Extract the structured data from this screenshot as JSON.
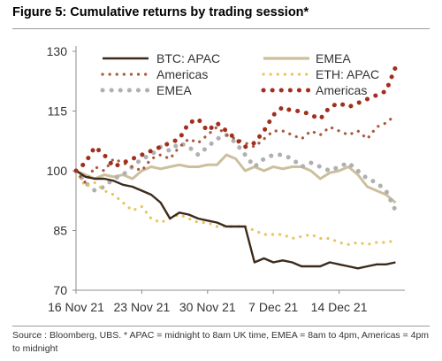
{
  "figure": {
    "title": "Figure 5: Cumulative returns by trading session*",
    "note": "Source : Bloomberg, UBS. * APAC = midnight to 8am UK time, EMEA = 8am to 4pm, Americas = 4pm to midnight"
  },
  "chart_data": {
    "type": "line",
    "xlabel": "",
    "ylabel": "",
    "ylim": [
      70,
      130
    ],
    "yticks": [
      "70",
      "85",
      "100",
      "115",
      "130"
    ],
    "xlim": [
      "2021-11-16",
      "2021-12-21"
    ],
    "xticks": [
      "16 Nov 21",
      "23 Nov 21",
      "30 Nov 21",
      "7 Dec 21",
      "14 Dec 21"
    ],
    "grid": false,
    "legend_placement": "top",
    "x": [
      "2021-11-16",
      "2021-11-17",
      "2021-11-18",
      "2021-11-19",
      "2021-11-20",
      "2021-11-21",
      "2021-11-22",
      "2021-11-23",
      "2021-11-24",
      "2021-11-25",
      "2021-11-26",
      "2021-11-27",
      "2021-11-28",
      "2021-11-29",
      "2021-11-30",
      "2021-12-01",
      "2021-12-02",
      "2021-12-03",
      "2021-12-04",
      "2021-12-05",
      "2021-12-06",
      "2021-12-07",
      "2021-12-08",
      "2021-12-09",
      "2021-12-10",
      "2021-12-11",
      "2021-12-12",
      "2021-12-13",
      "2021-12-14",
      "2021-12-15",
      "2021-12-16",
      "2021-12-17",
      "2021-12-18",
      "2021-12-19",
      "2021-12-20"
    ],
    "series": [
      {
        "name": "BTC: APAC",
        "color": "#3b2a1c",
        "style": "solid",
        "values": [
          100,
          98.5,
          98,
          98,
          97.5,
          96.5,
          96,
          95,
          94,
          92,
          88,
          89.5,
          89,
          88,
          87.5,
          87,
          86,
          86,
          86,
          77,
          78,
          77,
          77.5,
          77,
          76,
          76,
          76,
          77,
          76.5,
          76,
          75.5,
          76,
          76.5,
          76.5,
          77
        ]
      },
      {
        "name": "EMEA",
        "color": "#cbbf9d",
        "style": "solid",
        "values": [
          100,
          99,
          98,
          99,
          98.5,
          99,
          98,
          100,
          101,
          100.5,
          101,
          101.5,
          101,
          101,
          101.5,
          101.5,
          104,
          103,
          100,
          101,
          100,
          101,
          100.5,
          101,
          101,
          100,
          98,
          99.5,
          100,
          101,
          99,
          96,
          95,
          94,
          92
        ]
      },
      {
        "name": "Americas",
        "color": "#a8593d",
        "style": "dotted",
        "values": [
          100,
          97,
          101,
          100,
          103,
          102,
          101,
          100,
          103,
          104,
          103,
          106,
          108,
          107,
          109,
          111,
          109,
          108,
          107,
          106,
          108,
          110,
          110,
          109,
          108,
          110,
          109,
          111,
          110,
          109,
          110,
          108,
          111,
          112,
          114
        ]
      },
      {
        "name": "ETH: APAC",
        "color": "#e9c55e",
        "style": "dotted",
        "values": [
          100,
          96,
          97,
          95,
          94,
          92,
          90,
          91,
          88,
          87,
          88,
          89,
          88,
          87,
          87,
          86,
          86,
          86,
          86,
          85,
          84,
          84,
          84,
          83,
          83.5,
          84,
          83,
          83,
          82,
          81.5,
          82,
          81.5,
          82,
          82,
          82.5
        ]
      },
      {
        "name": "EMEA",
        "color": "#b0b0b0",
        "style": "dotted",
        "values": [
          100,
          97,
          95,
          96,
          98,
          99,
          101,
          103,
          104,
          106,
          105,
          107,
          106,
          104,
          106,
          108,
          109,
          107,
          104,
          101,
          103,
          104,
          104,
          103,
          101,
          102,
          101,
          100,
          101,
          102,
          100,
          98,
          97,
          95,
          90
        ]
      },
      {
        "name": "Americas",
        "color": "#a12f1d",
        "style": "dotted",
        "values": [
          100,
          102,
          106,
          104,
          101,
          102,
          103,
          104,
          105,
          106,
          107,
          108,
          112,
          113,
          110,
          112,
          110,
          108,
          106,
          107,
          110,
          114,
          116,
          115,
          115,
          114,
          113,
          116,
          117,
          116,
          117,
          118,
          119,
          120,
          126
        ]
      }
    ]
  }
}
